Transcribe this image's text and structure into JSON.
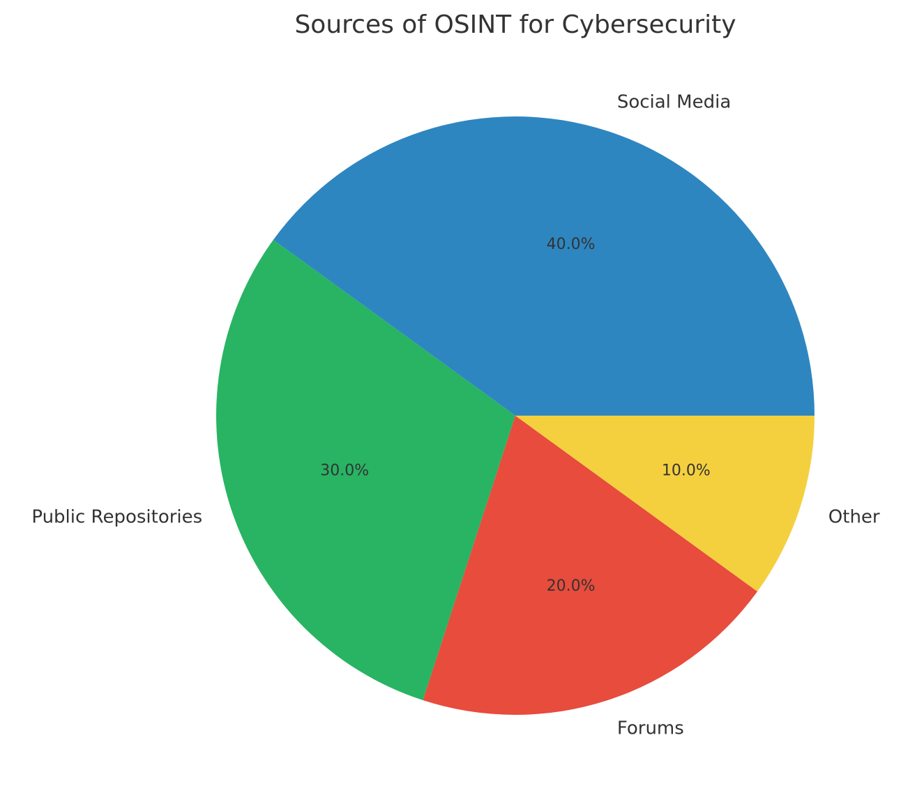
{
  "chart_data": {
    "type": "pie",
    "title": "Sources of OSINT for Cybersecurity",
    "categories": [
      "Social Media",
      "Public Repositories",
      "Forums",
      "Other"
    ],
    "values": [
      40,
      30,
      20,
      10
    ],
    "percent_labels": [
      "40.0%",
      "30.0%",
      "20.0%",
      "10.0%"
    ],
    "colors": [
      "#2E86C1",
      "#28B463",
      "#E74C3C",
      "#F4D03F"
    ],
    "start_angle_deg": 0,
    "direction": "counterclockwise"
  }
}
